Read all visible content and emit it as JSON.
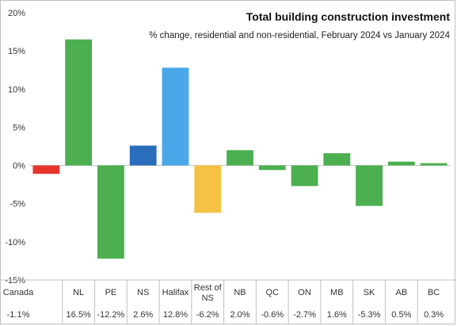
{
  "chart_data": {
    "type": "bar",
    "title": "Total building construction investment",
    "subtitle": "% change, residential and non-residential, February 2024 vs January 2024",
    "categories": [
      "Canada",
      "NL",
      "PE",
      "NS",
      "Halifax",
      "Rest of NS",
      "NB",
      "QC",
      "ON",
      "MB",
      "SK",
      "AB",
      "BC"
    ],
    "values": [
      -1.1,
      16.5,
      -12.2,
      2.6,
      12.8,
      -6.2,
      2.0,
      -0.6,
      -2.7,
      1.6,
      -5.3,
      0.5,
      0.3
    ],
    "value_labels": [
      "-1.1%",
      "16.5%",
      "-12.2%",
      "2.6%",
      "12.8%",
      "-6.2%",
      "2.0%",
      "-0.6%",
      "-2.7%",
      "1.6%",
      "-5.3%",
      "0.5%",
      "0.3%"
    ],
    "bar_colors": [
      "#e8352b",
      "#4caf50",
      "#4caf50",
      "#2a6ebb",
      "#4aa8e8",
      "#f5c243",
      "#4caf50",
      "#4caf50",
      "#4caf50",
      "#4caf50",
      "#4caf50",
      "#4caf50",
      "#4caf50"
    ],
    "ylim": [
      -15,
      20
    ],
    "yticks": [
      -15,
      -10,
      -5,
      0,
      5,
      10,
      15,
      20
    ],
    "ytick_labels": [
      "-15%",
      "-10%",
      "-5%",
      "0%",
      "5%",
      "10%",
      "15%",
      "20%"
    ],
    "xlabel": "",
    "ylabel": "",
    "grid": false,
    "legend": "none"
  }
}
